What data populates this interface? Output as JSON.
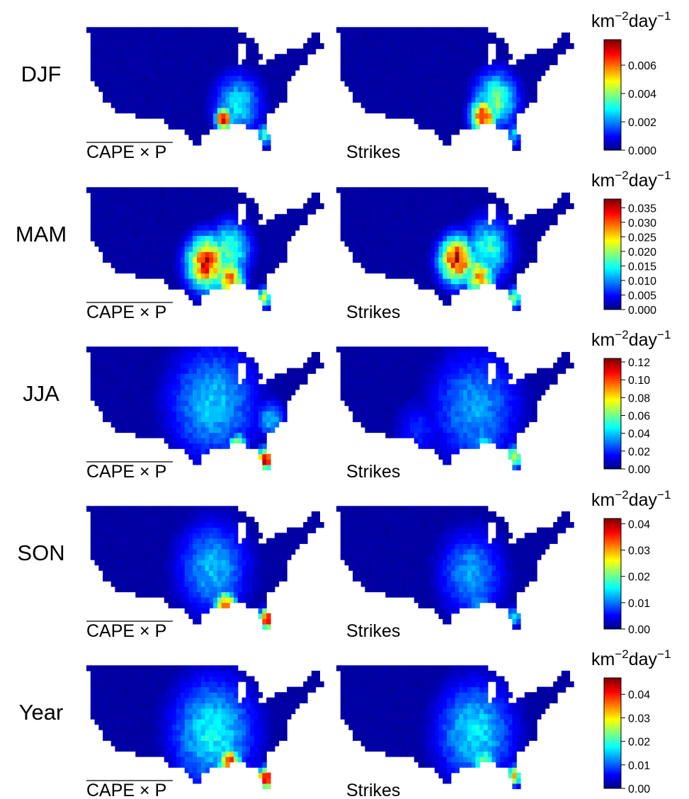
{
  "figure": {
    "column_labels": {
      "model": "CAPE × P",
      "observed": "Strikes"
    },
    "colorbar_unit": {
      "base_km": "km",
      "exp_km": "−2",
      "base_day": "day",
      "exp_day": "−1"
    },
    "colormap": [
      "#00007f",
      "#0000ff",
      "#007fff",
      "#00ffff",
      "#7fff7f",
      "#ffff00",
      "#ff7f00",
      "#ff0000",
      "#7f0000"
    ]
  },
  "rows": [
    {
      "season": "DJF",
      "ticks": [
        "0.000",
        "0.002",
        "0.004",
        "0.006"
      ],
      "tick_values": [
        0.0,
        0.002,
        0.004,
        0.006
      ],
      "vmax": 0.0078,
      "hotspots": {
        "model": [
          {
            "lat": 31.5,
            "lon": -91.5,
            "v": 0.0075,
            "s": 1.4
          },
          {
            "lat": 34,
            "lon": -88,
            "v": 0.0028,
            "s": 4.0
          },
          {
            "lat": 28.5,
            "lon": -81.6,
            "v": 0.0035,
            "s": 1.4
          }
        ],
        "observed": [
          {
            "lat": 32,
            "lon": -89,
            "v": 0.0068,
            "s": 2.2
          },
          {
            "lat": 35,
            "lon": -86,
            "v": 0.0038,
            "s": 3.6
          },
          {
            "lat": 28.5,
            "lon": -81.6,
            "v": 0.0025,
            "s": 1.4
          }
        ]
      }
    },
    {
      "season": "MAM",
      "ticks": [
        "0.000",
        "0.005",
        "0.010",
        "0.015",
        "0.020",
        "0.025",
        "0.030",
        "0.035"
      ],
      "tick_values": [
        0.0,
        0.005,
        0.01,
        0.015,
        0.02,
        0.025,
        0.03,
        0.035
      ],
      "vmax": 0.038,
      "hotspots": {
        "model": [
          {
            "lat": 34.5,
            "lon": -95.5,
            "v": 0.033,
            "s": 3.4
          },
          {
            "lat": 31.5,
            "lon": -90,
            "v": 0.03,
            "s": 2.4
          },
          {
            "lat": 37,
            "lon": -90,
            "v": 0.018,
            "s": 3.5
          },
          {
            "lat": 28,
            "lon": -81.6,
            "v": 0.022,
            "s": 1.3
          }
        ],
        "observed": [
          {
            "lat": 35,
            "lon": -95.5,
            "v": 0.034,
            "s": 3.0
          },
          {
            "lat": 32,
            "lon": -90,
            "v": 0.026,
            "s": 2.6
          },
          {
            "lat": 37,
            "lon": -88,
            "v": 0.016,
            "s": 4.0
          },
          {
            "lat": 28,
            "lon": -81.6,
            "v": 0.02,
            "s": 1.3
          }
        ]
      }
    },
    {
      "season": "JJA",
      "ticks": [
        "0.00",
        "0.02",
        "0.04",
        "0.06",
        "0.08",
        "0.10",
        "0.12"
      ],
      "tick_values": [
        0.0,
        0.02,
        0.04,
        0.06,
        0.08,
        0.1,
        0.12
      ],
      "vmax": 0.124,
      "hotspots": {
        "model": [
          {
            "lat": 38,
            "lon": -94,
            "v": 0.04,
            "s": 7.5
          },
          {
            "lat": 30,
            "lon": -88,
            "v": 0.08,
            "s": 1.6
          },
          {
            "lat": 27.5,
            "lon": -81.2,
            "v": 0.11,
            "s": 1.5
          },
          {
            "lat": 35,
            "lon": -80,
            "v": 0.04,
            "s": 2.4
          }
        ],
        "observed": [
          {
            "lat": 37,
            "lon": -91,
            "v": 0.035,
            "s": 7.5
          },
          {
            "lat": 28,
            "lon": -81.6,
            "v": 0.08,
            "s": 1.4
          },
          {
            "lat": 30.5,
            "lon": -89,
            "v": 0.045,
            "s": 2.0
          },
          {
            "lat": 33,
            "lon": -105,
            "v": 0.02,
            "s": 4.0
          }
        ]
      }
    },
    {
      "season": "SON",
      "ticks": [
        "0.00",
        "0.01",
        "0.02",
        "0.03",
        "0.04"
      ],
      "tick_values": [
        0.0,
        0.01,
        0.02,
        0.03,
        0.04
      ],
      "vmax": 0.042,
      "hotspots": {
        "model": [
          {
            "lat": 37,
            "lon": -94,
            "v": 0.013,
            "s": 6.0
          },
          {
            "lat": 30,
            "lon": -91,
            "v": 0.036,
            "s": 1.8
          },
          {
            "lat": 27.5,
            "lon": -81,
            "v": 0.04,
            "s": 1.3
          }
        ],
        "observed": [
          {
            "lat": 36,
            "lon": -92,
            "v": 0.012,
            "s": 5.5
          },
          {
            "lat": 30,
            "lon": -90,
            "v": 0.012,
            "s": 2.5
          },
          {
            "lat": 28,
            "lon": -81.6,
            "v": 0.015,
            "s": 1.3
          }
        ]
      }
    },
    {
      "season": "Year",
      "ticks": [
        "0.00",
        "0.01",
        "0.02",
        "0.03",
        "0.04"
      ],
      "tick_values": [
        0.0,
        0.01,
        0.02,
        0.03,
        0.04
      ],
      "vmax": 0.047,
      "hotspots": {
        "model": [
          {
            "lat": 36,
            "lon": -94,
            "v": 0.018,
            "s": 7.0
          },
          {
            "lat": 30.5,
            "lon": -90,
            "v": 0.042,
            "s": 1.8
          },
          {
            "lat": 27.5,
            "lon": -81.2,
            "v": 0.045,
            "s": 1.4
          }
        ],
        "observed": [
          {
            "lat": 36,
            "lon": -91,
            "v": 0.017,
            "s": 6.5
          },
          {
            "lat": 30.5,
            "lon": -89,
            "v": 0.025,
            "s": 2.0
          },
          {
            "lat": 28,
            "lon": -81.6,
            "v": 0.03,
            "s": 1.3
          }
        ]
      }
    }
  ]
}
